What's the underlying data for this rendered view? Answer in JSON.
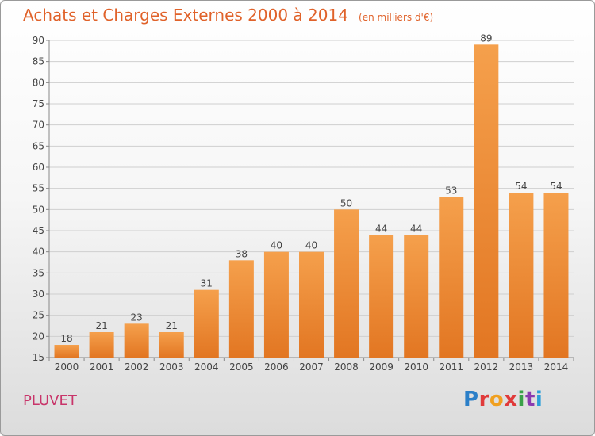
{
  "title": "Achats et Charges Externes 2000 à 2014",
  "subtitle": "(en milliers d'€)",
  "commune": "PLUVET",
  "logo": [
    "P",
    "r",
    "o",
    "x",
    "i",
    "t",
    "i"
  ],
  "colors": {
    "title": "#e0622a",
    "bar_top": "#f5a04c",
    "bar_bottom": "#e27622",
    "commune": "#c8356a"
  },
  "chart_data": {
    "type": "bar",
    "title": "Achats et Charges Externes 2000 à 2014",
    "subtitle": "(en milliers d'€)",
    "categories": [
      "2000",
      "2001",
      "2002",
      "2003",
      "2004",
      "2005",
      "2006",
      "2007",
      "2008",
      "2009",
      "2010",
      "2011",
      "2012",
      "2013",
      "2014"
    ],
    "values": [
      18,
      21,
      23,
      21,
      31,
      38,
      40,
      40,
      50,
      44,
      44,
      53,
      89,
      54,
      54
    ],
    "ylim": [
      15,
      90
    ],
    "yticks": [
      15,
      20,
      25,
      30,
      35,
      40,
      45,
      50,
      55,
      60,
      65,
      70,
      75,
      80,
      85,
      90
    ],
    "grid": true,
    "legend": "none"
  }
}
